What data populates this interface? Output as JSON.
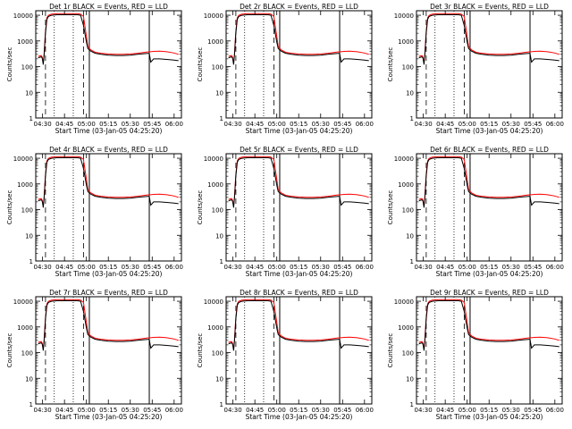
{
  "figure": {
    "xlabel": "Start Time (03-Jan-05 04:25:20)",
    "ylabel": "Counts/sec",
    "xtick_labels": [
      "04:30",
      "04:45",
      "05:00",
      "05:15",
      "05:30",
      "05:45",
      "06:00"
    ],
    "ytick_labels": [
      "1",
      "10",
      "100",
      "1000",
      "10000"
    ],
    "colors": {
      "events": "#000000",
      "lld": "#ff0000"
    }
  },
  "chart_data": [
    {
      "type": "line",
      "title": "Det 1r BLACK = Events, RED = LLD",
      "xlabel": "Start Time (03-Jan-05 04:25:20)",
      "ylabel": "Counts/sec",
      "yscale": "log",
      "ylim": [
        1,
        15000
      ],
      "xlim": [
        "04:25:20",
        "06:05:00"
      ],
      "x": [
        "04:27",
        "04:28",
        "04:29",
        "04:29:40",
        "04:30",
        "04:30:30",
        "04:31",
        "04:32",
        "04:33",
        "04:34",
        "04:36",
        "04:40",
        "04:48",
        "04:52",
        "04:54",
        "04:56",
        "04:58",
        "05:00",
        "05:01",
        "05:03",
        "05:06",
        "05:10",
        "05:15",
        "05:20",
        "05:25",
        "05:30",
        "05:35",
        "05:40",
        "05:43",
        "05:44",
        "05:46",
        "05:50",
        "05:55",
        "06:00",
        "06:03"
      ],
      "series": [
        {
          "name": "Events",
          "values": [
            220,
            230,
            240,
            220,
            180,
            120,
            260,
            2000,
            7000,
            9000,
            10000,
            10500,
            10500,
            10500,
            10500,
            10000,
            4000,
            900,
            500,
            400,
            330,
            300,
            280,
            270,
            270,
            280,
            300,
            320,
            330,
            150,
            200,
            200,
            190,
            180,
            170
          ]
        },
        {
          "name": "LLD",
          "values": [
            250,
            260,
            270,
            240,
            200,
            150,
            300,
            2500,
            8000,
            10000,
            11000,
            11500,
            11500,
            11500,
            11500,
            11000,
            9000,
            1500,
            600,
            450,
            360,
            330,
            310,
            300,
            300,
            310,
            330,
            360,
            380,
            380,
            390,
            400,
            380,
            340,
            300
          ]
        }
      ],
      "vlines": {
        "dashed": [
          "04:32",
          "04:58"
        ],
        "dotted": [
          "04:38",
          "04:51"
        ],
        "solid": [
          "05:02",
          "05:43"
        ]
      }
    },
    {
      "type": "line",
      "title": "Det 2r BLACK = Events, RED = LLD",
      "xlabel": "Start Time (03-Jan-05 04:25:20)",
      "ylabel": "Counts/sec",
      "yscale": "log",
      "ylim": [
        1,
        15000
      ],
      "series_like": "Det 1r"
    },
    {
      "type": "line",
      "title": "Det 3r BLACK = Events, RED = LLD",
      "xlabel": "Start Time (03-Jan-05 04:25:20)",
      "ylabel": "Counts/sec",
      "yscale": "log",
      "ylim": [
        1,
        15000
      ],
      "series_like": "Det 1r"
    },
    {
      "type": "line",
      "title": "Det 4r BLACK = Events, RED = LLD",
      "xlabel": "Start Time (03-Jan-05 04:25:20)",
      "ylabel": "Counts/sec",
      "yscale": "log",
      "ylim": [
        1,
        15000
      ],
      "series_like": "Det 1r"
    },
    {
      "type": "line",
      "title": "Det 5r BLACK = Events, RED = LLD",
      "xlabel": "Start Time (03-Jan-05 04:25:20)",
      "ylabel": "Counts/sec",
      "yscale": "log",
      "ylim": [
        1,
        15000
      ],
      "series_like": "Det 1r"
    },
    {
      "type": "line",
      "title": "Det 6r BLACK = Events, RED = LLD",
      "xlabel": "Start Time (03-Jan-05 04:25:20)",
      "ylabel": "Counts/sec",
      "yscale": "log",
      "ylim": [
        1,
        15000
      ],
      "series_like": "Det 1r"
    },
    {
      "type": "line",
      "title": "Det 7r BLACK = Events, RED = LLD",
      "xlabel": "Start Time (03-Jan-05 04:25:20)",
      "ylabel": "Counts/sec",
      "yscale": "log",
      "ylim": [
        1,
        15000
      ],
      "series_like": "Det 1r"
    },
    {
      "type": "line",
      "title": "Det 8r BLACK = Events, RED = LLD",
      "xlabel": "Start Time (03-Jan-05 04:25:20)",
      "ylabel": "Counts/sec",
      "yscale": "log",
      "ylim": [
        1,
        15000
      ],
      "series_like": "Det 1r"
    },
    {
      "type": "line",
      "title": "Det 9r BLACK = Events, RED = LLD",
      "xlabel": "Start Time (03-Jan-05 04:25:20)",
      "ylabel": "Counts/sec",
      "yscale": "log",
      "ylim": [
        1,
        15000
      ],
      "series_like": "Det 1r"
    }
  ]
}
